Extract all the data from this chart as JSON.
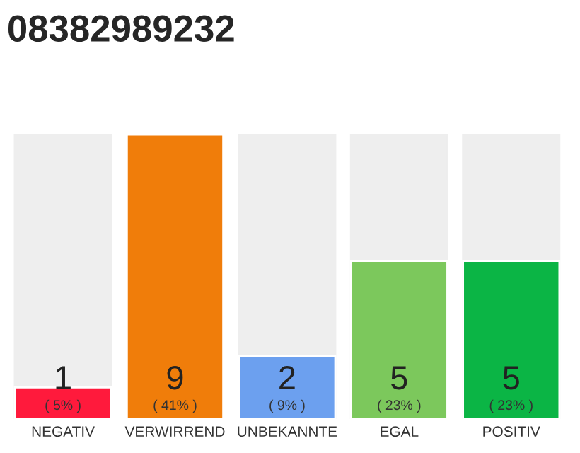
{
  "chart_data": {
    "type": "bar",
    "title": "08382989232",
    "categories": [
      "NEGATIV",
      "VERWIRREND",
      "UNBEKANNTE",
      "EGAL",
      "POSITIV"
    ],
    "values": [
      1,
      9,
      2,
      5,
      5
    ],
    "colors": [
      "#ff1a3c",
      "#f07d0a",
      "#6ca0ef",
      "#7cc85c",
      "#0bb545"
    ],
    "ylim": [
      0,
      9
    ],
    "tick_labels": "x",
    "data_labels": true,
    "grid": false,
    "annotations": [
      "( 5% )",
      "( 41% )",
      "( 9% )",
      "( 23% )",
      "( 23% )"
    ]
  }
}
